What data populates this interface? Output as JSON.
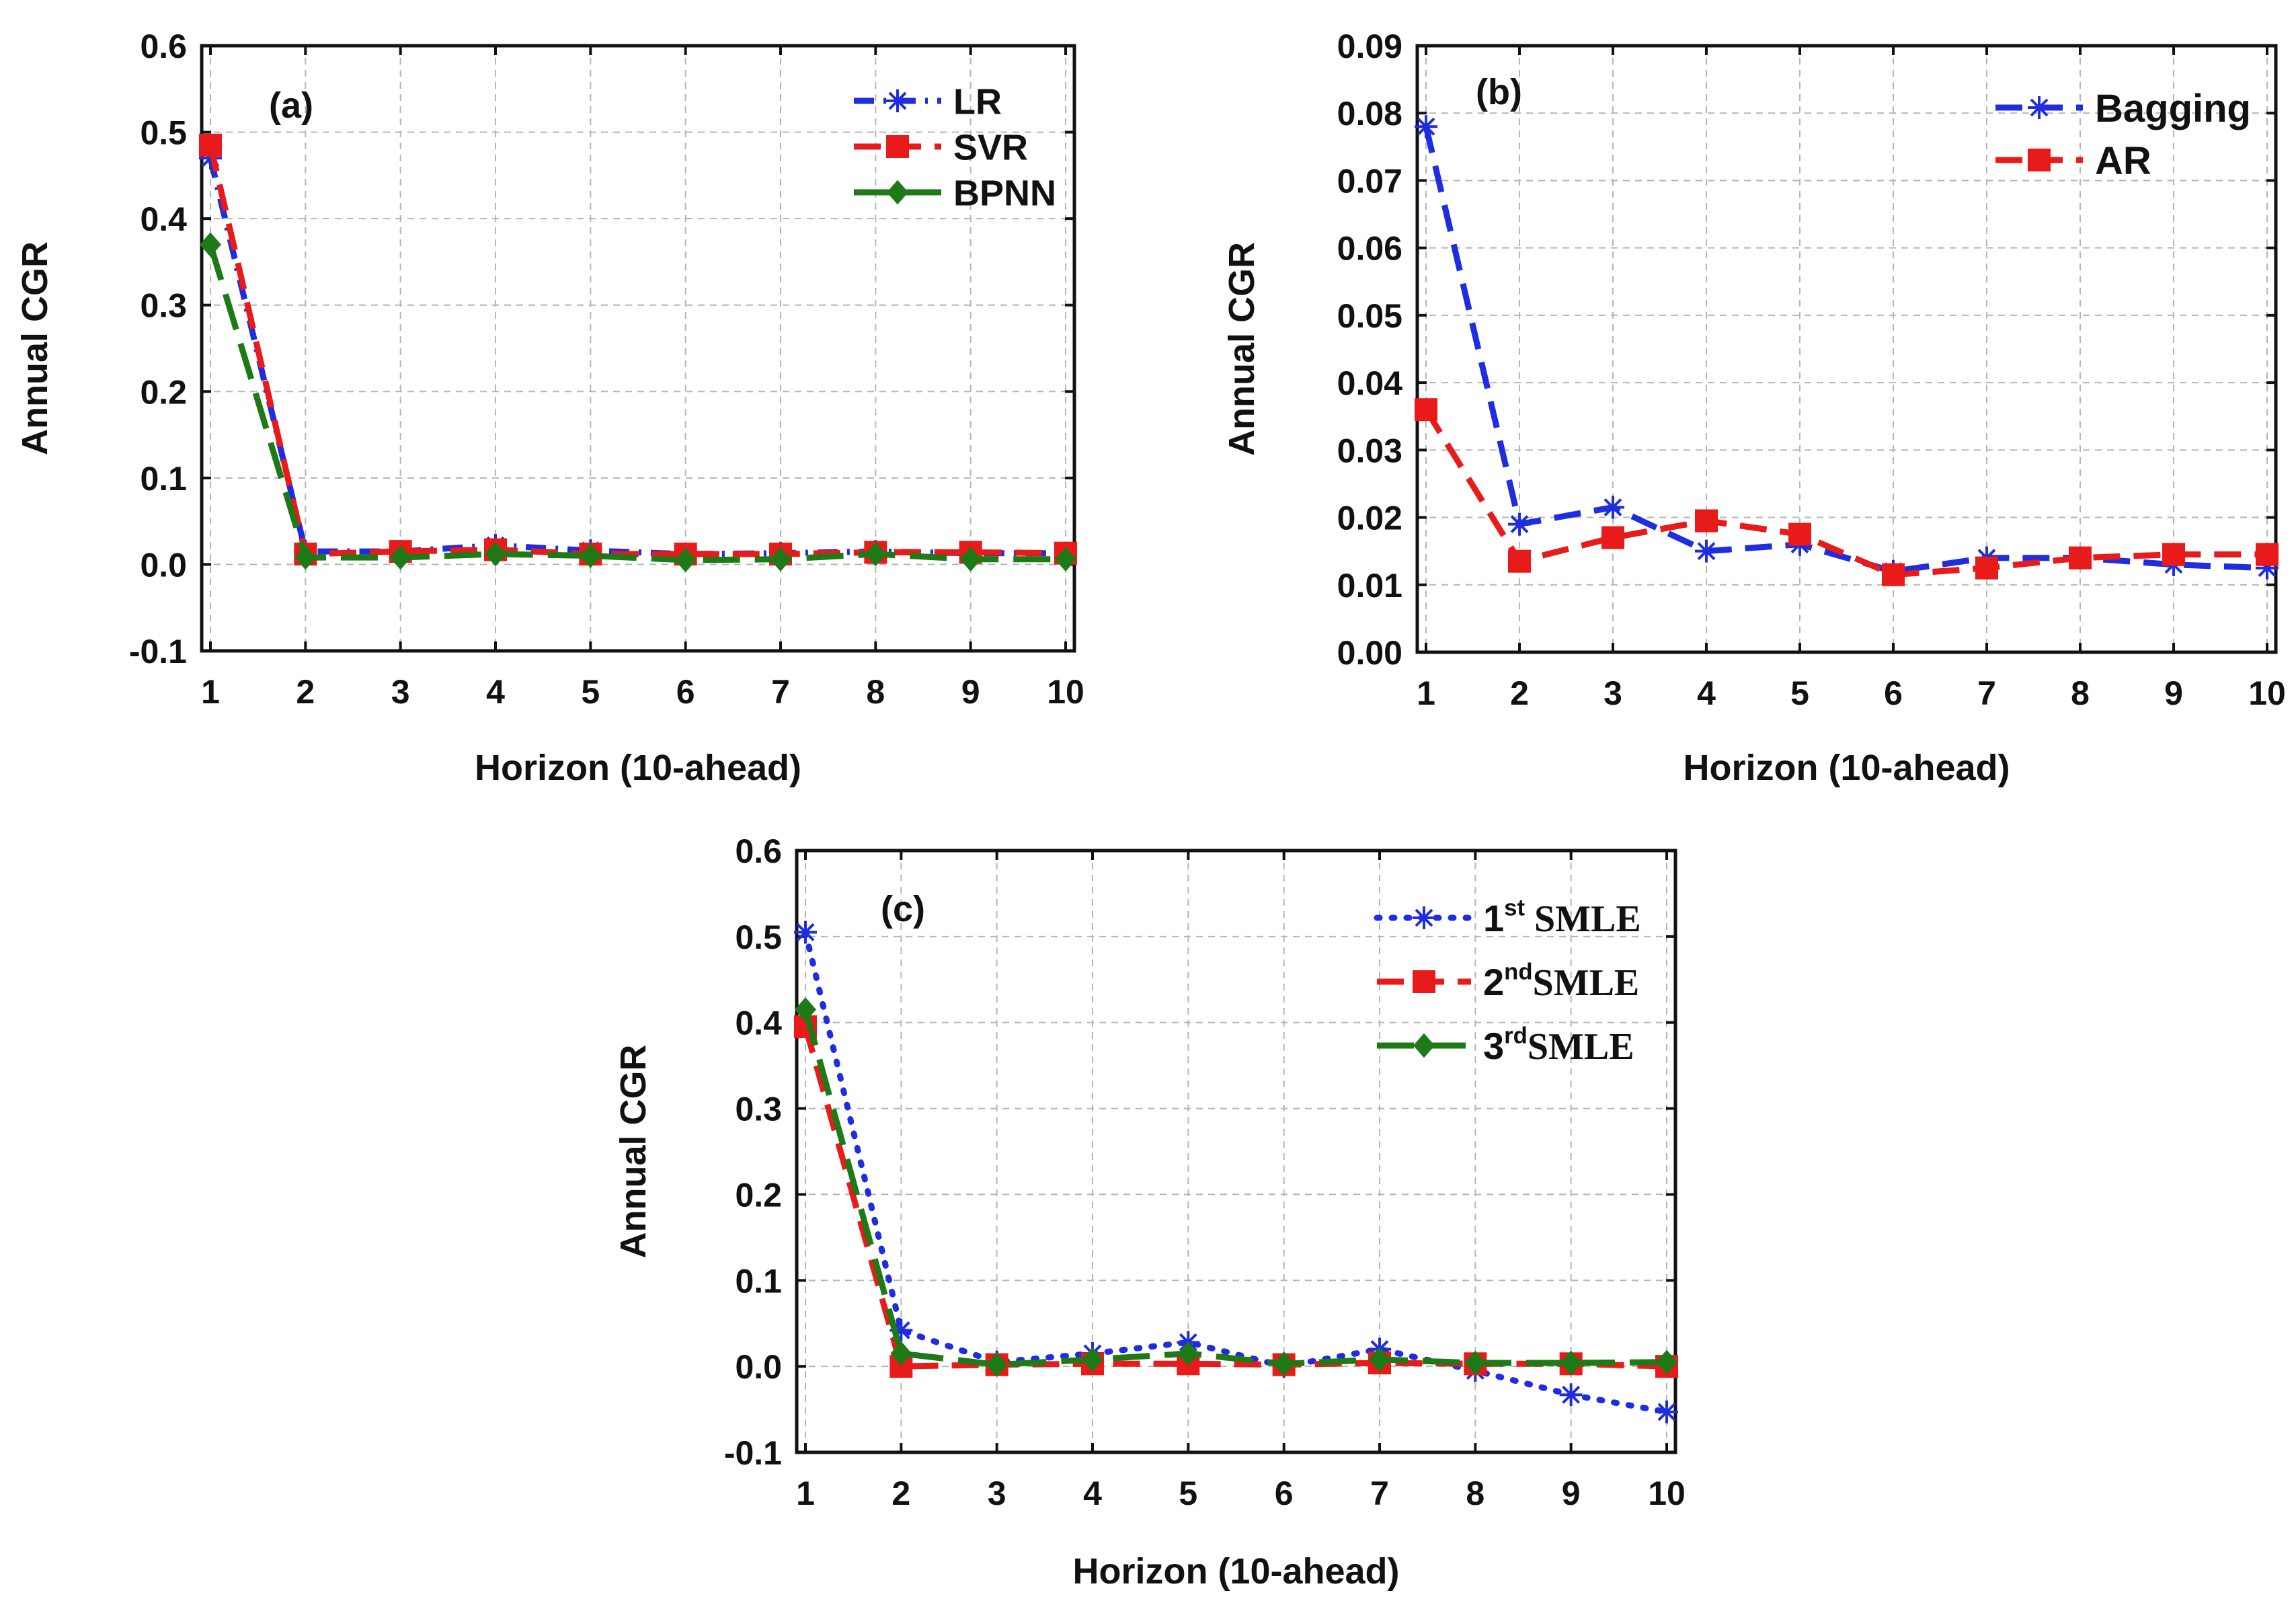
{
  "chart_data": [
    {
      "type": "line",
      "panel_label": "(a)",
      "xlabel": "Horizon (10-ahead)",
      "ylabel": "Annual CGR",
      "x": [
        1,
        2,
        3,
        4,
        5,
        6,
        7,
        8,
        9,
        10
      ],
      "xlim": [
        1,
        10
      ],
      "ylim": [
        -0.1,
        0.6
      ],
      "yticks": [
        "-0.1",
        "0.0",
        "0.1",
        "0.2",
        "0.3",
        "0.4",
        "0.5",
        "0.6"
      ],
      "xticks": [
        "1",
        "2",
        "3",
        "4",
        "5",
        "6",
        "7",
        "8",
        "9",
        "10"
      ],
      "grid": true,
      "legend_position": "top-right",
      "series": [
        {
          "name": "LR",
          "label_main": "LR",
          "label_sup": "",
          "label_tail": "",
          "color": "#1f2de0",
          "dash": "dot-dash",
          "marker": "asterisk",
          "values": [
            0.47,
            0.015,
            0.015,
            0.022,
            0.016,
            0.012,
            0.013,
            0.015,
            0.013,
            0.013
          ]
        },
        {
          "name": "SVR",
          "label_main": "SVR",
          "label_sup": "",
          "label_tail": "",
          "color": "#e81a1a",
          "dash": "dash",
          "marker": "square",
          "values": [
            0.485,
            0.012,
            0.015,
            0.017,
            0.012,
            0.012,
            0.012,
            0.014,
            0.014,
            0.013
          ]
        },
        {
          "name": "BPNN",
          "label_main": "BPNN",
          "label_sup": "",
          "label_tail": "",
          "color": "#1d7a16",
          "dash": "longdash",
          "marker": "diamond",
          "values": [
            0.37,
            0.008,
            0.008,
            0.012,
            0.01,
            0.005,
            0.006,
            0.012,
            0.006,
            0.006
          ]
        }
      ]
    },
    {
      "type": "line",
      "panel_label": "(b)",
      "xlabel": "Horizon (10-ahead)",
      "ylabel": "Annual CGR",
      "x": [
        1,
        2,
        3,
        4,
        5,
        6,
        7,
        8,
        9,
        10
      ],
      "xlim": [
        1,
        10
      ],
      "ylim": [
        0.0,
        0.09
      ],
      "yticks": [
        "0.00",
        "0.01",
        "0.02",
        "0.03",
        "0.04",
        "0.05",
        "0.06",
        "0.07",
        "0.08",
        "0.09"
      ],
      "xticks": [
        "1",
        "2",
        "3",
        "4",
        "5",
        "6",
        "7",
        "8",
        "9",
        "10"
      ],
      "grid": true,
      "legend_position": "top-right",
      "series": [
        {
          "name": "Bagging",
          "label_main": "Bagging",
          "label_sup": "",
          "label_tail": "",
          "color": "#1f2de0",
          "dash": "dash",
          "marker": "asterisk",
          "values": [
            0.078,
            0.019,
            0.0215,
            0.015,
            0.016,
            0.012,
            0.014,
            0.014,
            0.013,
            0.0125
          ]
        },
        {
          "name": "AR",
          "label_main": "AR",
          "label_sup": "",
          "label_tail": "",
          "color": "#e81a1a",
          "dash": "dash",
          "marker": "square",
          "values": [
            0.036,
            0.0135,
            0.017,
            0.0195,
            0.0175,
            0.0115,
            0.0125,
            0.014,
            0.0145,
            0.0145
          ]
        }
      ]
    },
    {
      "type": "line",
      "panel_label": "(c)",
      "xlabel": "Horizon (10-ahead)",
      "ylabel": "Annual CGR",
      "x": [
        1,
        2,
        3,
        4,
        5,
        6,
        7,
        8,
        9,
        10
      ],
      "xlim": [
        1,
        10
      ],
      "ylim": [
        -0.1,
        0.6
      ],
      "yticks": [
        "-0.1",
        "0.0",
        "0.1",
        "0.2",
        "0.3",
        "0.4",
        "0.5",
        "0.6"
      ],
      "xticks": [
        "1",
        "2",
        "3",
        "4",
        "5",
        "6",
        "7",
        "8",
        "9",
        "10"
      ],
      "grid": true,
      "legend_position": "top-right",
      "series": [
        {
          "name": "1st SMLE",
          "label_main": "1",
          "label_sup": "st",
          "label_tail": " SMLE",
          "color": "#1f2de0",
          "dash": "dot",
          "marker": "asterisk",
          "values": [
            0.505,
            0.042,
            0.005,
            0.015,
            0.028,
            0.0,
            0.02,
            -0.005,
            -0.033,
            -0.053
          ]
        },
        {
          "name": "2nd SMLE",
          "label_main": "2",
          "label_sup": "nd",
          "label_tail": "SMLE",
          "color": "#e81a1a",
          "dash": "dash",
          "marker": "square",
          "values": [
            0.395,
            0.0,
            0.002,
            0.003,
            0.003,
            0.002,
            0.004,
            0.003,
            0.003,
            0.0
          ]
        },
        {
          "name": "3rd SMLE",
          "label_main": "3",
          "label_sup": "rd",
          "label_tail": "SMLE",
          "color": "#1d7a16",
          "dash": "longdash",
          "marker": "diamond",
          "values": [
            0.415,
            0.015,
            0.002,
            0.008,
            0.015,
            0.003,
            0.008,
            0.004,
            0.004,
            0.005
          ]
        }
      ]
    }
  ]
}
